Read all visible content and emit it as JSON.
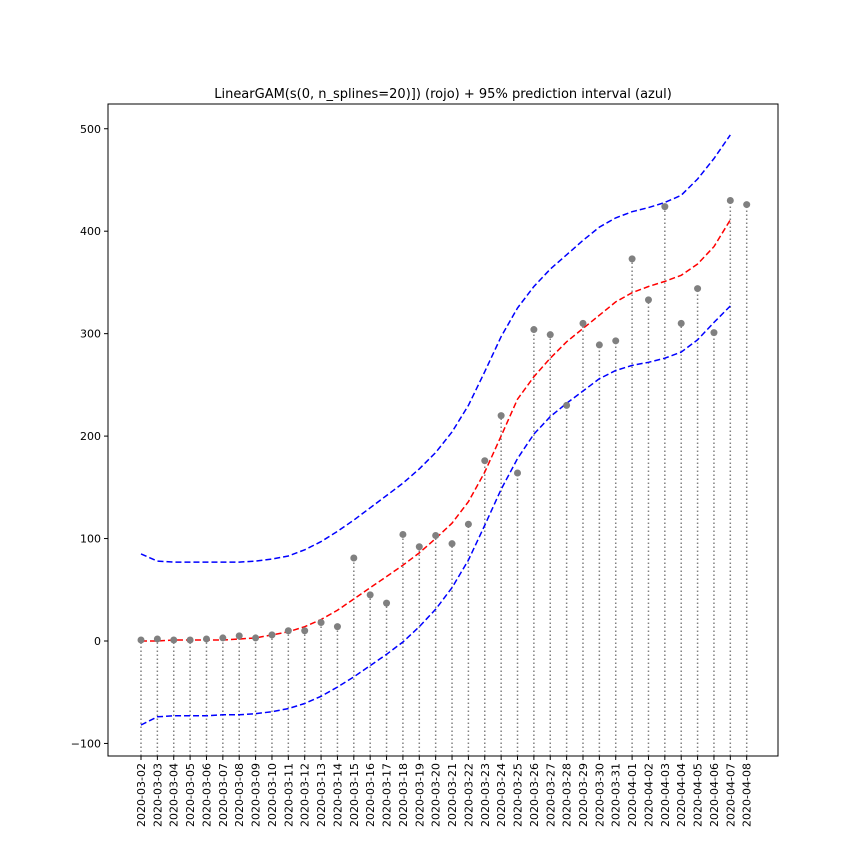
{
  "chart_data": {
    "type": "scatter",
    "title": "LinearGAM(s(0, n_splines=20)]) (rojo) + 95% prediction interval (azul)",
    "xlabel": "",
    "ylabel": "",
    "ylim": [
      -110,
      527
    ],
    "yticks": [
      -100,
      0,
      100,
      200,
      300,
      400,
      500
    ],
    "ytick_labels": [
      "−100",
      "0",
      "100",
      "200",
      "300",
      "400",
      "500"
    ],
    "grid": false,
    "categories": [
      "2020-03-02",
      "2020-03-03",
      "2020-03-04",
      "2020-03-05",
      "2020-03-06",
      "2020-03-07",
      "2020-03-08",
      "2020-03-09",
      "2020-03-10",
      "2020-03-11",
      "2020-03-12",
      "2020-03-13",
      "2020-03-14",
      "2020-03-15",
      "2020-03-16",
      "2020-03-17",
      "2020-03-18",
      "2020-03-19",
      "2020-03-20",
      "2020-03-21",
      "2020-03-22",
      "2020-03-23",
      "2020-03-24",
      "2020-03-25",
      "2020-03-26",
      "2020-03-27",
      "2020-03-28",
      "2020-03-29",
      "2020-03-30",
      "2020-03-31",
      "2020-04-01",
      "2020-04-02",
      "2020-04-03",
      "2020-04-04",
      "2020-04-05",
      "2020-04-06",
      "2020-04-07",
      "2020-04-08"
    ],
    "observed": [
      1,
      2,
      1,
      1,
      2,
      3,
      5,
      3,
      6,
      10,
      10,
      18,
      14,
      81,
      45,
      37,
      104,
      92,
      103,
      95,
      114,
      176,
      220,
      164,
      304,
      299,
      230,
      310,
      289,
      293,
      373,
      333,
      424,
      310,
      344,
      301,
      430,
      426
    ],
    "series": [
      {
        "role": "fit",
        "color": "#ff0000",
        "style": "dashed",
        "values": [
          0,
          0,
          1,
          1,
          1,
          1,
          2,
          3,
          6,
          9,
          14,
          21,
          30,
          41,
          52,
          63,
          74,
          86,
          100,
          115,
          136,
          165,
          200,
          236,
          258,
          276,
          292,
          305,
          318,
          331,
          340,
          346,
          351,
          357,
          368,
          385,
          411,
          null
        ]
      },
      {
        "role": "lower",
        "color": "#0000ff",
        "style": "dashed",
        "values": [
          -82,
          -74,
          -73,
          -73,
          -73,
          -72,
          -72,
          -71,
          -69,
          -66,
          -61,
          -54,
          -45,
          -35,
          -24,
          -13,
          -1,
          14,
          31,
          52,
          79,
          113,
          148,
          178,
          202,
          219,
          232,
          244,
          256,
          264,
          269,
          272,
          276,
          282,
          294,
          311,
          327,
          null
        ]
      },
      {
        "role": "upper",
        "color": "#0000ff",
        "style": "dashed",
        "values": [
          85,
          78,
          77,
          77,
          77,
          77,
          77,
          78,
          80,
          83,
          89,
          97,
          107,
          118,
          130,
          142,
          154,
          168,
          184,
          204,
          230,
          263,
          297,
          325,
          346,
          363,
          377,
          391,
          404,
          413,
          419,
          423,
          428,
          435,
          451,
          471,
          494,
          null
        ]
      }
    ],
    "point_color": "#808080",
    "stem_color": "#808080"
  }
}
